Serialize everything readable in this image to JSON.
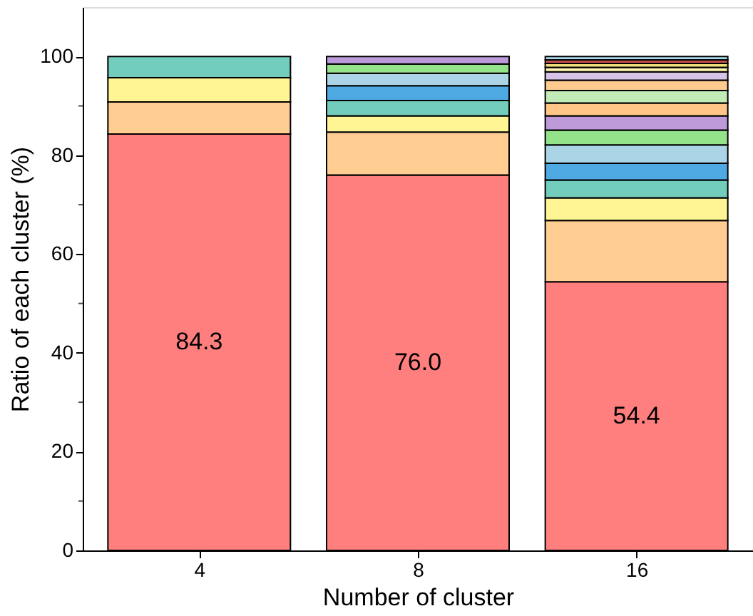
{
  "chart_data": {
    "type": "bar",
    "stacked": true,
    "xlabel": "Number of cluster",
    "ylabel": "Ratio of each cluster (%)",
    "categories": [
      "4",
      "8",
      "16"
    ],
    "ylim": [
      0,
      110
    ],
    "yticks": [
      0,
      {
        "value": 10,
        "label": null
      },
      20,
      {
        "value": 30,
        "label": null
      },
      40,
      {
        "value": 50,
        "label": null
      },
      60,
      {
        "value": 70,
        "label": null
      },
      80,
      {
        "value": 90,
        "label": null
      },
      100
    ],
    "grid": false,
    "series": [
      {
        "color": "#ff7f7f",
        "values": [
          84.3,
          76.0,
          54.4
        ],
        "value_labels": [
          "84.3",
          "76.0",
          "54.4"
        ]
      },
      {
        "color": "#ffcc91",
        "values": [
          6.5,
          8.7,
          12.4
        ]
      },
      {
        "color": "#fff594",
        "values": [
          4.9,
          3.3,
          4.6
        ]
      },
      {
        "color": "#73cdbc",
        "values": [
          4.3,
          3.1,
          3.6
        ]
      },
      {
        "color": "#4fa9e3",
        "values": [
          null,
          3.0,
          3.4
        ]
      },
      {
        "color": "#abd5e6",
        "values": [
          null,
          2.5,
          3.7
        ]
      },
      {
        "color": "#94e38a",
        "values": [
          null,
          1.9,
          3.0
        ]
      },
      {
        "color": "#bd9bdb",
        "values": [
          null,
          1.5,
          2.9
        ]
      },
      {
        "color": "#ffc687",
        "values": [
          null,
          null,
          2.6
        ]
      },
      {
        "color": "#c2ebb8",
        "values": [
          null,
          null,
          2.5
        ]
      },
      {
        "color": "#ffcb8f",
        "values": [
          null,
          null,
          2.1
        ]
      },
      {
        "color": "#d6c3e8",
        "values": [
          null,
          null,
          1.7
        ]
      },
      {
        "color": "#fff3b0",
        "values": [
          null,
          null,
          0.9
        ]
      },
      {
        "color": "#f5e17a",
        "values": [
          null,
          null,
          0.8
        ]
      },
      {
        "color": "#c0504d",
        "values": [
          null,
          null,
          0.7
        ]
      },
      {
        "color": "#a8d8ea",
        "values": [
          null,
          null,
          0.7
        ]
      }
    ]
  }
}
